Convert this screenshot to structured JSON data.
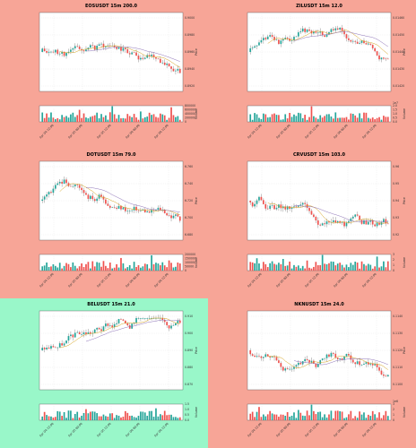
{
  "page": {
    "background": "#f7a597",
    "highlight_background": "#99f7c9"
  },
  "chart_data": [
    {
      "type": "candlestick",
      "title": "EOSUSDT 15m 200.0",
      "ylabel": "Price",
      "y2label": "Volume",
      "x_ticks": [
        "Apr 04 12:00",
        "Apr 05 00:00",
        "Apr 05 12:00",
        "Apr 06 00:00",
        "Apr 06 12:00"
      ],
      "y_ticks": [
        "0.8920",
        "0.8940",
        "0.8960",
        "0.8980",
        "0.9000"
      ],
      "vol_ticks": [
        "0",
        "200000",
        "400000",
        "600000",
        "800000"
      ],
      "highlight": false,
      "seed": 11,
      "trend": -0.15
    },
    {
      "type": "candlestick",
      "title": "ZILUSDT 15m 12.0",
      "ylabel": "Price",
      "y2label": "Volume",
      "vol_exp": "1e7",
      "x_ticks": [
        "Apr 04 12:00",
        "Apr 05 00:00",
        "Apr 05 12:00",
        "Apr 06 00:00",
        "Apr 06 12:00"
      ],
      "y_ticks": [
        "0.01420",
        "0.01430",
        "0.01440",
        "0.01450",
        "0.01460"
      ],
      "vol_ticks": [
        "0.0",
        "0.5",
        "1.0",
        "1.5",
        "2.0"
      ],
      "highlight": false,
      "seed": 23,
      "trend": -0.1
    },
    {
      "type": "candlestick",
      "title": "DOTUSDT 15m 79.0",
      "ylabel": "Price",
      "y2label": "Volume",
      "x_ticks": [
        "Apr 04 12:00",
        "Apr 05 00:00",
        "Apr 05 12:00",
        "Apr 06 00:00",
        "Apr 06 12:00"
      ],
      "y_ticks": [
        "6.680",
        "6.700",
        "6.720",
        "6.740",
        "6.760"
      ],
      "vol_ticks": [
        "0",
        "50000",
        "100000",
        "150000",
        "200000"
      ],
      "highlight": false,
      "seed": 37,
      "trend": 0.05
    },
    {
      "type": "candlestick",
      "title": "CRVUSDT 15m 103.0",
      "ylabel": "Price",
      "y2label": "Volume",
      "x_ticks": [
        "Apr 04 12:00",
        "Apr 05 00:00",
        "Apr 05 12:00",
        "Apr 06 00:00",
        "Apr 06 12:00"
      ],
      "y_ticks": [
        "0.92",
        "0.93",
        "0.94",
        "0.95",
        "0.96"
      ],
      "vol_ticks": [
        "0",
        "1",
        "2",
        "3"
      ],
      "highlight": false,
      "seed": 51,
      "trend": -0.4
    },
    {
      "type": "candlestick",
      "title": "BELUSDT 15m 21.0",
      "ylabel": "Price",
      "y2label": "Volume",
      "x_ticks": [
        "Apr 04 12:00",
        "Apr 05 00:00",
        "Apr 05 12:00",
        "Apr 06 00:00",
        "Apr 06 12:00"
      ],
      "y_ticks": [
        "0.870",
        "0.880",
        "0.890",
        "0.900",
        "0.910"
      ],
      "vol_ticks": [
        "0.0",
        "0.5",
        "1.0",
        "1.5"
      ],
      "highlight": true,
      "seed": 67,
      "trend": 0.9
    },
    {
      "type": "candlestick",
      "title": "NKNUSDT 15m 24.0",
      "ylabel": "Price",
      "y2label": "Volume",
      "vol_exp": "1e6",
      "x_ticks": [
        "Apr 04 12:00",
        "Apr 05 00:00",
        "Apr 05 12:00",
        "Apr 06 00:00",
        "Apr 06 12:00"
      ],
      "y_ticks": [
        "0.1100",
        "0.1110",
        "0.1120",
        "0.1130",
        "0.1140"
      ],
      "vol_ticks": [
        "0",
        "1",
        "2",
        "3"
      ],
      "highlight": false,
      "seed": 83,
      "trend": -0.35
    }
  ]
}
